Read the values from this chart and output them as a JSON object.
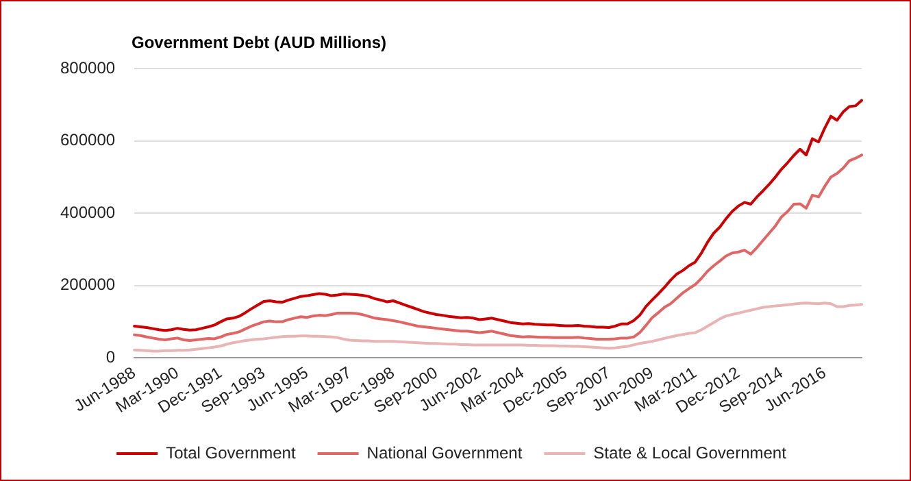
{
  "chart_data": {
    "type": "line",
    "title": "Government Debt (AUD Millions)",
    "categories": [
      "Jun-1988",
      null,
      null,
      null,
      null,
      null,
      null,
      "Mar-1990",
      null,
      null,
      null,
      null,
      null,
      null,
      "Dec-1991",
      null,
      null,
      null,
      null,
      null,
      null,
      "Sep-1993",
      null,
      null,
      null,
      null,
      null,
      null,
      "Jun-1995",
      null,
      null,
      null,
      null,
      null,
      null,
      "Mar-1997",
      null,
      null,
      null,
      null,
      null,
      null,
      "Dec-1998",
      null,
      null,
      null,
      null,
      null,
      null,
      "Sep-2000",
      null,
      null,
      null,
      null,
      null,
      null,
      "Jun-2002",
      null,
      null,
      null,
      null,
      null,
      null,
      "Mar-2004",
      null,
      null,
      null,
      null,
      null,
      null,
      "Dec-2005",
      null,
      null,
      null,
      null,
      null,
      null,
      "Sep-2007",
      null,
      null,
      null,
      null,
      null,
      null,
      "Jun-2009",
      null,
      null,
      null,
      null,
      null,
      null,
      "Mar-2011",
      null,
      null,
      null,
      null,
      null,
      null,
      "Dec-2012",
      null,
      null,
      null,
      null,
      null,
      null,
      "Sep-2014",
      null,
      null,
      null,
      null,
      null,
      null,
      "Jun-2016",
      null,
      null,
      null,
      null,
      null,
      null
    ],
    "series": [
      {
        "name": "Total Government",
        "color": "#cc0000",
        "values": [
          88000,
          86000,
          84000,
          81000,
          78000,
          76000,
          78000,
          82000,
          79000,
          77000,
          78000,
          82000,
          86000,
          91000,
          100000,
          108000,
          110000,
          115000,
          125000,
          136000,
          146000,
          156000,
          158000,
          155000,
          154000,
          160000,
          165000,
          170000,
          172000,
          175000,
          178000,
          176000,
          172000,
          174000,
          177000,
          176000,
          175000,
          173000,
          170000,
          164000,
          160000,
          155000,
          158000,
          152000,
          146000,
          140000,
          134000,
          128000,
          124000,
          120000,
          118000,
          115000,
          113000,
          111000,
          112000,
          110000,
          106000,
          108000,
          110000,
          106000,
          102000,
          98000,
          96000,
          94000,
          95000,
          93000,
          92000,
          91000,
          91000,
          90000,
          89000,
          89000,
          90000,
          88000,
          87000,
          85000,
          85000,
          84000,
          88000,
          94000,
          94000,
          103000,
          118000,
          142000,
          160000,
          177000,
          195000,
          215000,
          232000,
          242000,
          255000,
          265000,
          290000,
          320000,
          345000,
          362000,
          385000,
          405000,
          420000,
          430000,
          425000,
          445000,
          462000,
          480000,
          500000,
          522000,
          540000,
          560000,
          577000,
          561000,
          606000,
          597000,
          635000,
          668000,
          657000,
          680000,
          695000,
          697000,
          712000
        ]
      },
      {
        "name": "National Government",
        "color": "#e06666",
        "values": [
          64000,
          62000,
          58000,
          55000,
          52000,
          50000,
          53000,
          55000,
          50000,
          48000,
          50000,
          52000,
          54000,
          53000,
          58000,
          65000,
          68000,
          72000,
          80000,
          88000,
          94000,
          100000,
          102000,
          100000,
          100000,
          106000,
          110000,
          114000,
          112000,
          116000,
          118000,
          117000,
          120000,
          124000,
          124000,
          124000,
          123000,
          120000,
          115000,
          110000,
          108000,
          106000,
          103000,
          100000,
          96000,
          92000,
          88000,
          86000,
          84000,
          82000,
          80000,
          78000,
          76000,
          74000,
          74000,
          72000,
          70000,
          72000,
          74000,
          70000,
          66000,
          62000,
          60000,
          58000,
          59000,
          58000,
          57000,
          57000,
          56000,
          56000,
          56000,
          56000,
          57000,
          55000,
          54000,
          52000,
          52000,
          52000,
          53000,
          55000,
          55000,
          58000,
          70000,
          90000,
          111000,
          125000,
          140000,
          150000,
          165000,
          180000,
          192000,
          203000,
          220000,
          240000,
          255000,
          268000,
          282000,
          290000,
          293000,
          298000,
          287000,
          305000,
          325000,
          345000,
          365000,
          390000,
          405000,
          425000,
          426000,
          414000,
          450000,
          445000,
          474000,
          500000,
          510000,
          525000,
          545000,
          552000,
          561000
        ]
      },
      {
        "name": "State & Local Government",
        "color": "#e8b4b4",
        "values": [
          22000,
          21000,
          20000,
          19000,
          19000,
          20000,
          20000,
          21000,
          21000,
          22000,
          24000,
          26000,
          28000,
          30000,
          33000,
          38000,
          42000,
          45000,
          48000,
          50000,
          52000,
          53000,
          55000,
          57000,
          59000,
          60000,
          60000,
          61000,
          61000,
          60000,
          60000,
          59000,
          58000,
          56000,
          52000,
          49000,
          48000,
          47000,
          47000,
          46000,
          46000,
          46000,
          46000,
          45000,
          44000,
          43000,
          42000,
          41000,
          40000,
          40000,
          39000,
          38000,
          38000,
          37000,
          37000,
          36000,
          36000,
          36000,
          36000,
          36000,
          36000,
          36000,
          36000,
          36000,
          35000,
          35000,
          34000,
          34000,
          34000,
          33000,
          33000,
          32000,
          32000,
          31000,
          30000,
          29000,
          28000,
          27000,
          28000,
          30000,
          32000,
          36000,
          40000,
          43000,
          46000,
          50000,
          54000,
          58000,
          62000,
          65000,
          68000,
          70000,
          78000,
          88000,
          98000,
          108000,
          116000,
          120000,
          124000,
          128000,
          132000,
          136000,
          140000,
          142000,
          144000,
          145000,
          147000,
          149000,
          151000,
          152000,
          151000,
          150000,
          152000,
          150000,
          142000,
          142000,
          145000,
          146000,
          148000
        ]
      }
    ],
    "ylim": [
      0,
      800000
    ],
    "yticks": [
      0,
      200000,
      400000,
      600000,
      800000
    ],
    "grid": "y",
    "legend": "bottom",
    "marker": "none",
    "line_style": "solid"
  }
}
